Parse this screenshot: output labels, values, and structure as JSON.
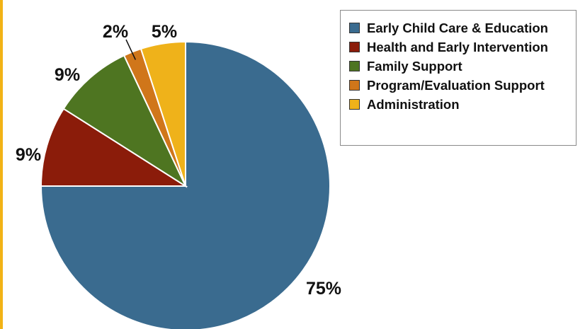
{
  "chart_data": {
    "type": "pie",
    "title": "",
    "legend_position": "top-right",
    "slices": [
      {
        "label": "Early Child Care & Education",
        "value": 75,
        "value_label": "75%",
        "color": "#3a6b8f"
      },
      {
        "label": "Health and Early Intervention",
        "value": 9,
        "value_label": "9%",
        "color": "#8b1c0a"
      },
      {
        "label": "Family Support",
        "value": 9,
        "value_label": "9%",
        "color": "#4e7521"
      },
      {
        "label": "Program/Evaluation Support",
        "value": 2,
        "value_label": "2%",
        "color": "#d0761a"
      },
      {
        "label": "Administration",
        "value": 5,
        "value_label": "5%",
        "color": "#efb21a"
      }
    ]
  }
}
